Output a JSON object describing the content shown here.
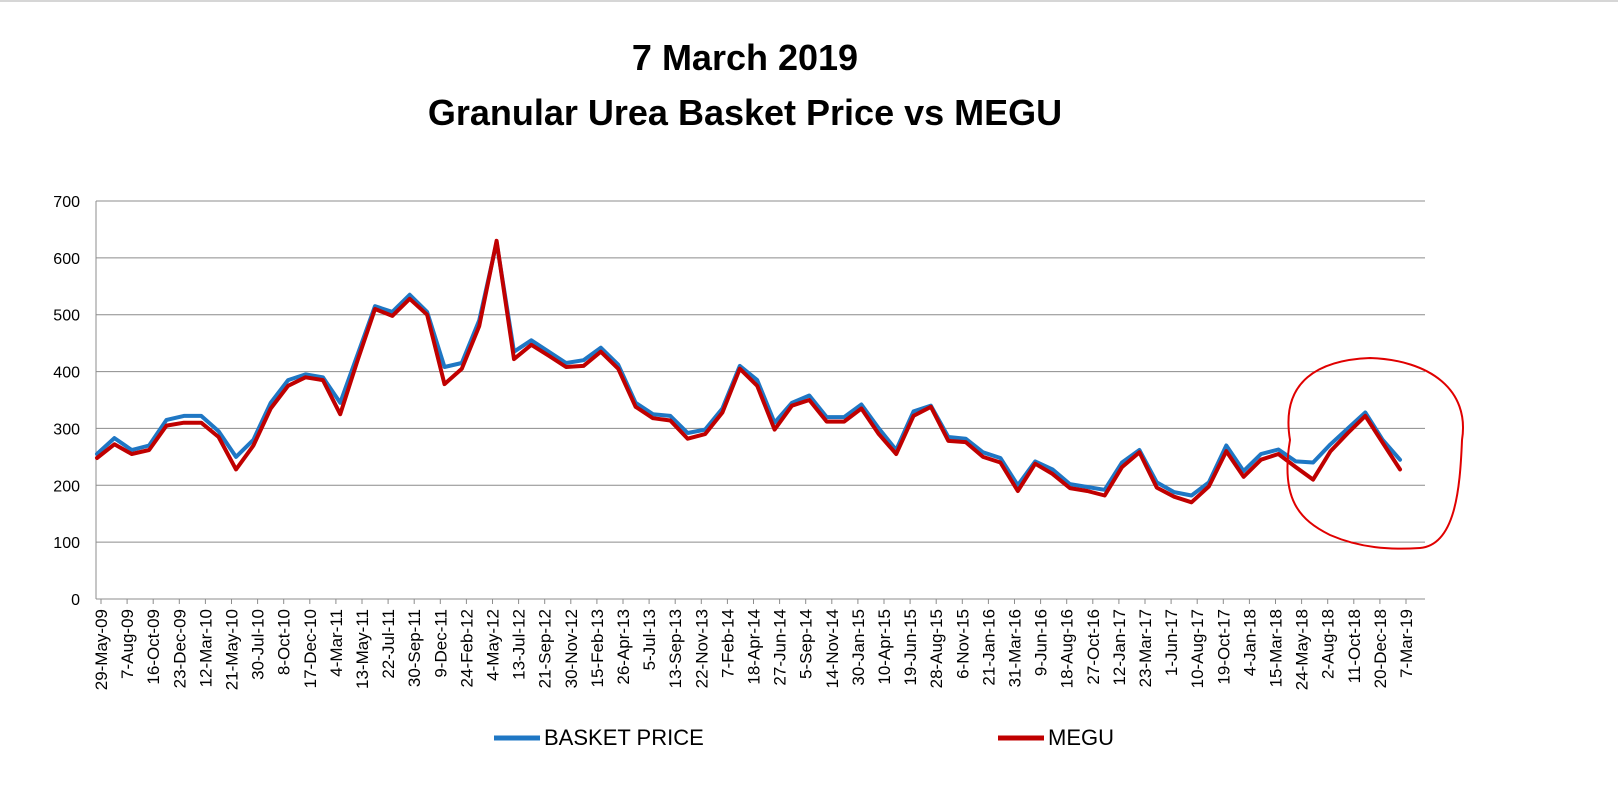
{
  "chart_data": {
    "type": "line",
    "title": "7 March 2019",
    "subtitle": "Granular Urea Basket Price vs MEGU",
    "xlabel": "",
    "ylabel": "",
    "ylim": [
      0,
      700
    ],
    "yticks": [
      0,
      100,
      200,
      300,
      400,
      500,
      600,
      700
    ],
    "grid": true,
    "legend": "bottom",
    "x_tick_labels": [
      "29-May-09",
      "7-Aug-09",
      "16-Oct-09",
      "23-Dec-09",
      "12-Mar-10",
      "21-May-10",
      "30-Jul-10",
      "8-Oct-10",
      "17-Dec-10",
      "4-Mar-11",
      "13-May-11",
      "22-Jul-11",
      "30-Sep-11",
      "9-Dec-11",
      "24-Feb-12",
      "4-May-12",
      "13-Jul-12",
      "21-Sep-12",
      "30-Nov-12",
      "15-Feb-13",
      "26-Apr-13",
      "5-Jul-13",
      "13-Sep-13",
      "22-Nov-13",
      "7-Feb-14",
      "18-Apr-14",
      "27-Jun-14",
      "5-Sep-14",
      "14-Nov-14",
      "30-Jan-15",
      "10-Apr-15",
      "19-Jun-15",
      "28-Aug-15",
      "6-Nov-15",
      "21-Jan-16",
      "31-Mar-16",
      "9-Jun-16",
      "18-Aug-16",
      "27-Oct-16",
      "12-Jan-17",
      "23-Mar-17",
      "1-Jun-17",
      "10-Aug-17",
      "19-Oct-17",
      "4-Jan-18",
      "15-Mar-18",
      "24-May-18",
      "2-Aug-18",
      "11-Oct-18",
      "20-Dec-18",
      "7-Mar-19"
    ],
    "series": [
      {
        "name": "BASKET PRICE",
        "color": "#1f77c4",
        "values": [
          255,
          283,
          262,
          270,
          315,
          322,
          322,
          295,
          250,
          280,
          345,
          385,
          395,
          390,
          345,
          430,
          515,
          505,
          535,
          505,
          408,
          415,
          490,
          627,
          435,
          455,
          435,
          415,
          420,
          442,
          412,
          345,
          325,
          322,
          292,
          298,
          335,
          410,
          385,
          310,
          345,
          358,
          320,
          320,
          342,
          300,
          262,
          330,
          340,
          285,
          282,
          258,
          248,
          200,
          242,
          228,
          202,
          197,
          192,
          240,
          262,
          205,
          188,
          182,
          205,
          270,
          225,
          255,
          263,
          242,
          240,
          272,
          300,
          328,
          280,
          245
        ]
      },
      {
        "name": "MEGU",
        "color": "#c00000",
        "values": [
          248,
          272,
          255,
          262,
          305,
          310,
          310,
          285,
          228,
          270,
          335,
          375,
          390,
          385,
          325,
          420,
          510,
          498,
          528,
          500,
          378,
          405,
          480,
          630,
          422,
          447,
          428,
          408,
          410,
          435,
          405,
          338,
          318,
          314,
          282,
          290,
          328,
          405,
          375,
          298,
          340,
          350,
          312,
          312,
          335,
          290,
          255,
          322,
          338,
          278,
          276,
          250,
          240,
          190,
          238,
          220,
          195,
          190,
          182,
          232,
          258,
          196,
          180,
          170,
          198,
          260,
          215,
          245,
          255,
          232,
          210,
          260,
          292,
          322,
          275,
          228
        ]
      }
    ],
    "annotations": [
      {
        "type": "circle",
        "color": "#e00000"
      }
    ]
  }
}
